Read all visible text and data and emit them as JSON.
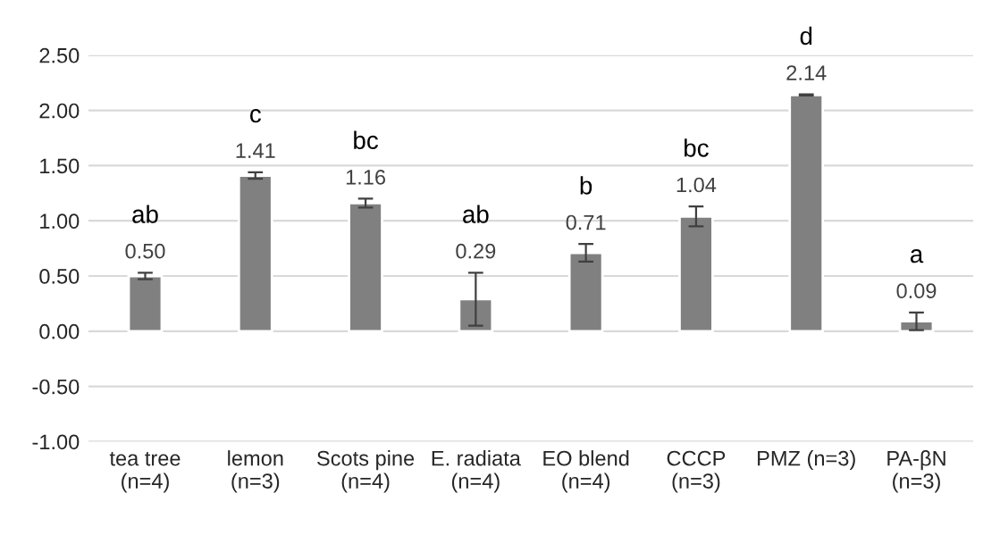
{
  "chart_data": {
    "type": "bar",
    "categories": [
      "tea tree\n(n=4)",
      "lemon\n(n=3)",
      "Scots pine\n(n=4)",
      "E. radiata\n(n=4)",
      "EO blend\n(n=4)",
      "CCCP\n(n=3)",
      "PMZ (n=3)",
      "PA-βN\n(n=3)"
    ],
    "values": [
      0.5,
      1.41,
      1.16,
      0.29,
      0.71,
      1.04,
      2.14,
      0.09
    ],
    "errors": [
      0.03,
      0.03,
      0.04,
      0.24,
      0.08,
      0.09,
      0.005,
      0.08
    ],
    "value_labels": [
      "0.50",
      "1.41",
      "1.16",
      "0.29",
      "0.71",
      "1.04",
      "2.14",
      "0.09"
    ],
    "color": "#808080",
    "annotations": [
      "ab",
      "c",
      "bc",
      "ab",
      "b",
      "bc",
      "d",
      "a"
    ],
    "ylim": [
      -1.0,
      2.5
    ],
    "yticks": [
      {
        "value": -1.0,
        "label": "-1.00"
      },
      {
        "value": -0.5,
        "label": "-0.50"
      },
      {
        "value": 0.0,
        "label": "0.00"
      },
      {
        "value": 0.5,
        "label": "0.50"
      },
      {
        "value": 1.0,
        "label": "1.00"
      },
      {
        "value": 1.5,
        "label": "1.50"
      },
      {
        "value": 2.0,
        "label": "2.00"
      },
      {
        "value": 2.5,
        "label": "2.50"
      }
    ],
    "grid": "y"
  }
}
